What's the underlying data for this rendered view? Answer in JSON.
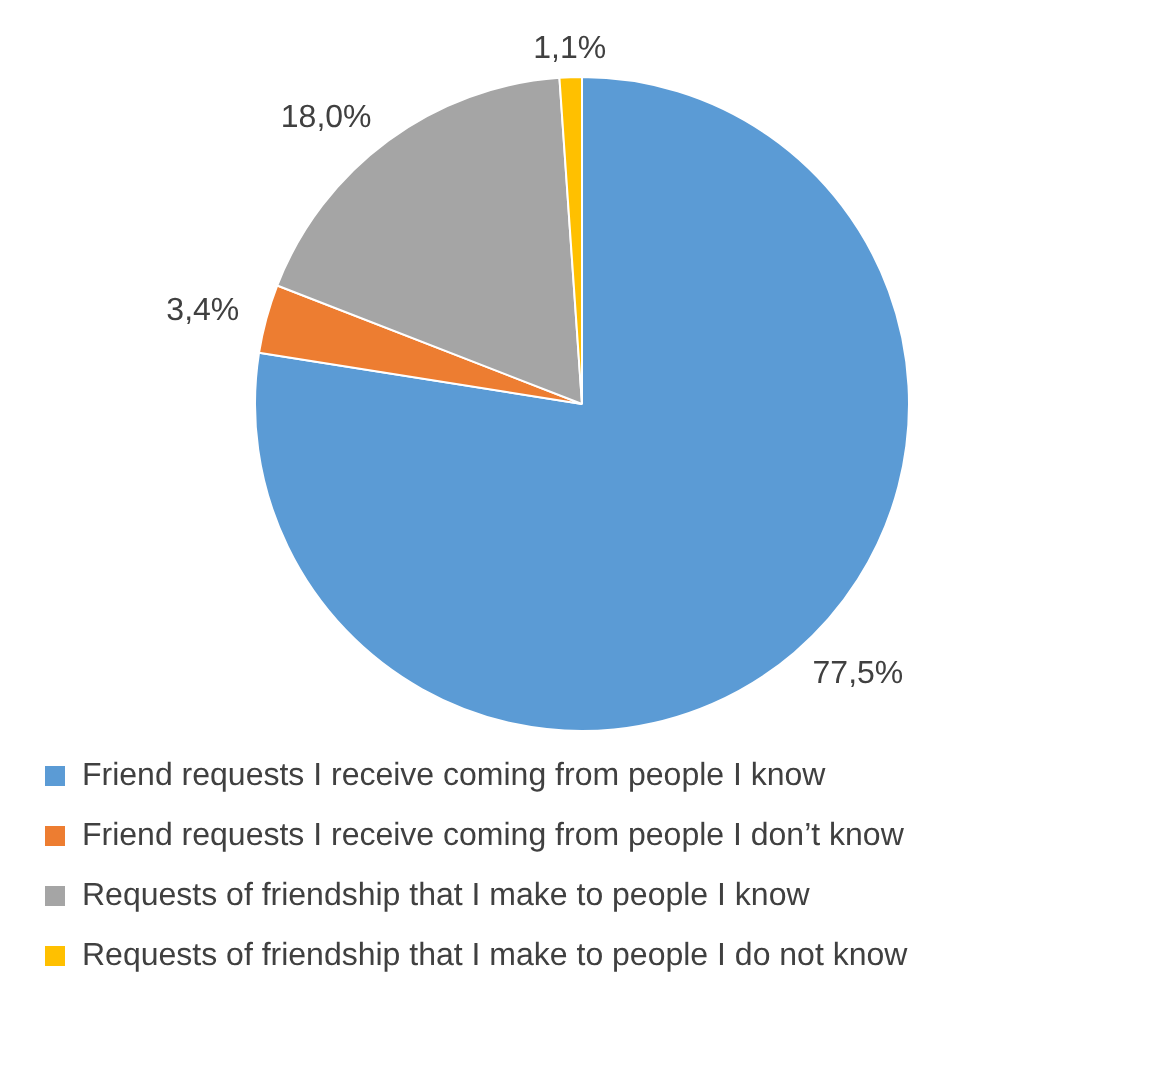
{
  "chart_data": {
    "type": "pie",
    "categories": [
      "Friend requests I receive coming from people I know",
      "Friend requests I receive coming from people I don’t know",
      "Requests of friendship that I make to people I know",
      "Requests of friendship that I make to people I do not know"
    ],
    "values": [
      77.5,
      3.4,
      18.0,
      1.1
    ],
    "colors": [
      "#5b9bd5",
      "#ed7d31",
      "#a5a5a5",
      "#ffc000"
    ],
    "value_labels": [
      "77,5%",
      "3,4%",
      "18,0%",
      "1,1%"
    ],
    "legend": "bottom"
  }
}
